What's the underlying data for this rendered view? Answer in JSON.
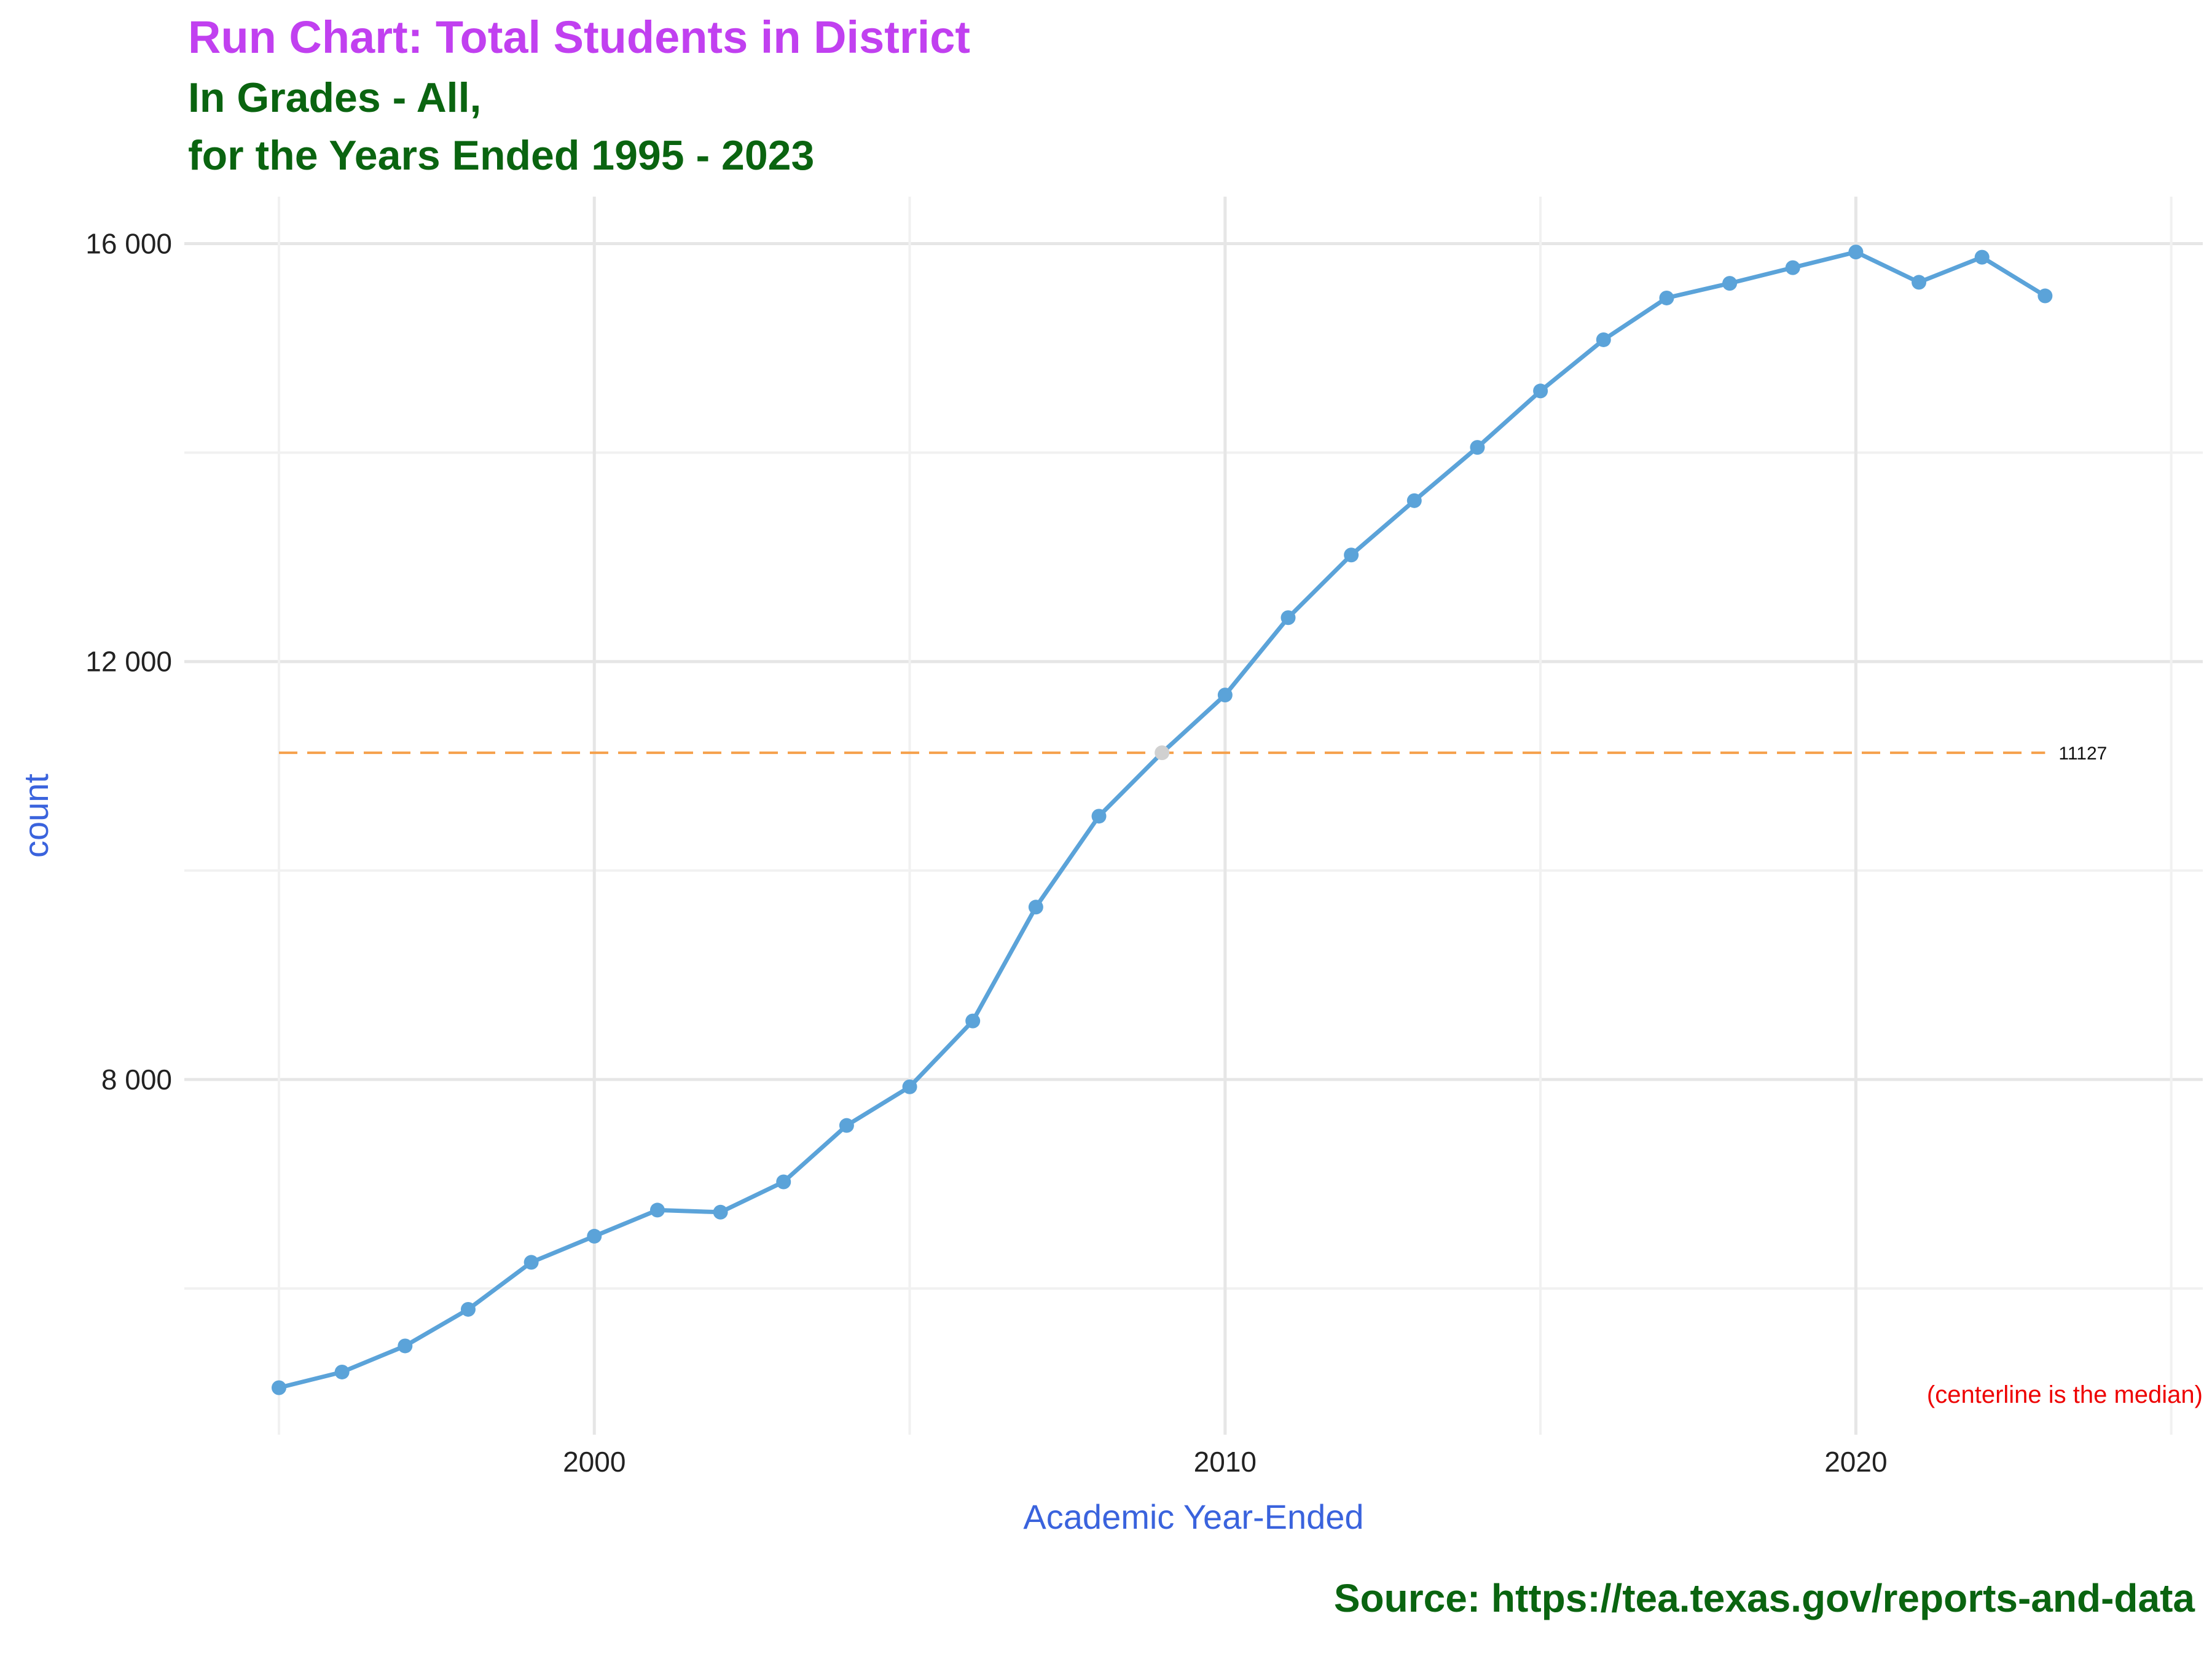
{
  "title": "Run Chart: Total Students in District",
  "subtitle_line1": "In Grades - All,",
  "subtitle_line2": "for the Years Ended 1995 - 2023",
  "source": "Source:  https://tea.texas.gov/reports-and-data",
  "colors": {
    "line": "#5ba3d9",
    "median": "#f5a04a",
    "median_point": "#d0d0d0",
    "title": "#c140f0",
    "subtitle": "#0a6410",
    "axis_title": "#3a63dd",
    "note": "#ee0000"
  },
  "chart_data": {
    "type": "line",
    "xlabel": "Academic Year-Ended",
    "ylabel": "count",
    "x": [
      1995,
      1996,
      1997,
      1998,
      1999,
      2000,
      2001,
      2002,
      2003,
      2004,
      2005,
      2006,
      2007,
      2008,
      2009,
      2010,
      2011,
      2012,
      2013,
      2014,
      2015,
      2016,
      2017,
      2018,
      2019,
      2020,
      2021,
      2022,
      2023
    ],
    "values": [
      5050,
      5200,
      5450,
      5800,
      6250,
      6500,
      6750,
      6730,
      7020,
      7560,
      7930,
      8560,
      9650,
      10520,
      11127,
      11680,
      12420,
      13020,
      13540,
      14050,
      14590,
      15080,
      15480,
      15620,
      15770,
      15920,
      15630,
      15870,
      15500
    ],
    "xlim": [
      1993.5,
      2025.5
    ],
    "ylim": [
      4600,
      16450
    ],
    "x_ticks": [
      2000,
      2010,
      2020
    ],
    "x_tick_labels": [
      "2000",
      "2010",
      "2020"
    ],
    "y_ticks": [
      8000,
      12000,
      16000
    ],
    "y_tick_labels": [
      "8 000",
      "12 000",
      "16 000"
    ],
    "median": 11127,
    "median_label": "11127",
    "median_point_x": 2009,
    "note": "(centerline is the median)",
    "grid": true,
    "legend": "none"
  }
}
